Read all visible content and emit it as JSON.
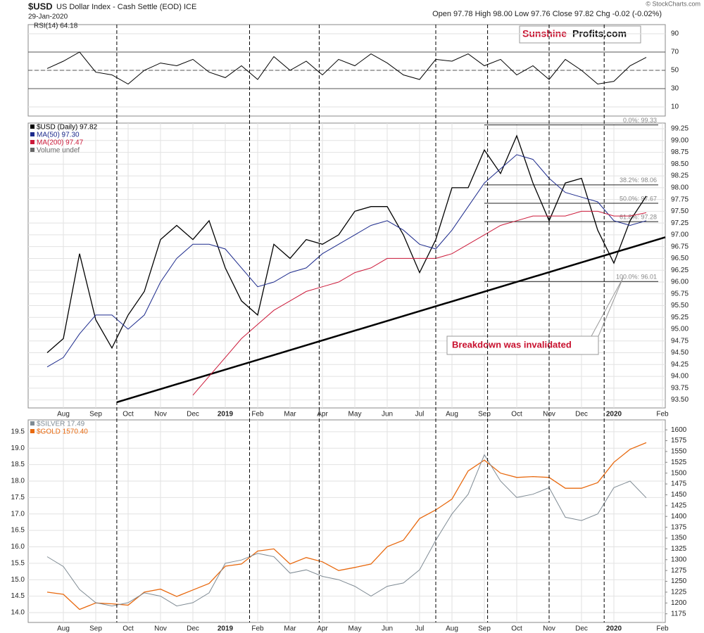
{
  "header": {
    "symbol": "$USD",
    "description": "US Dollar Index - Cash Settle (EOD) ICE",
    "date": "29-Jan-2020",
    "quote": "Open 97.78 High 98.00 Low 97.76 Close 97.82 Chg -0.02 (-0.02%)",
    "copyright": "© StockCharts.com",
    "logo_a": "Sunshine",
    "logo_b": "Profits.com"
  },
  "chart_data": [
    {
      "type": "line",
      "title": "RSI(14) 64.18",
      "color": "#000000",
      "values": [
        52,
        60,
        70,
        48,
        45,
        35,
        50,
        58,
        55,
        62,
        48,
        42,
        55,
        40,
        65,
        50,
        60,
        45,
        62,
        55,
        68,
        58,
        45,
        40,
        62,
        60,
        68,
        55,
        62,
        45,
        55,
        40,
        62,
        50,
        35,
        38,
        55,
        64.18,
        null
      ],
      "ylim": [
        0,
        100
      ],
      "yticks": [
        10,
        30,
        50,
        70,
        90
      ],
      "reference_lines": [
        30,
        50,
        70
      ]
    },
    {
      "type": "line",
      "extra_legend": "Volume undef",
      "categories": [
        null,
        "Aug",
        null,
        "Sep",
        null,
        "Oct",
        null,
        "Nov",
        null,
        "Dec",
        null,
        "2019",
        null,
        "Feb",
        null,
        "Mar",
        null,
        "Apr",
        null,
        "May",
        null,
        "Jun",
        null,
        "Jul",
        null,
        "Aug",
        null,
        "Sep",
        null,
        "Oct",
        null,
        "Nov",
        null,
        "Dec",
        null,
        "2020",
        null,
        null,
        "Feb"
      ],
      "series": [
        {
          "name": "$USD (Daily) 97.82",
          "color": "#000000",
          "values": [
            94.5,
            94.8,
            96.6,
            95.2,
            94.6,
            95.3,
            95.8,
            96.9,
            97.2,
            96.9,
            97.3,
            96.3,
            95.6,
            95.3,
            96.8,
            96.5,
            96.9,
            96.8,
            97.0,
            97.5,
            97.6,
            97.6,
            97.0,
            96.2,
            96.9,
            98.0,
            98.0,
            98.8,
            98.3,
            99.1,
            98.1,
            97.3,
            98.1,
            98.2,
            97.1,
            96.4,
            97.3,
            97.82,
            null
          ]
        },
        {
          "name": "MA(50) 97.30",
          "color": "#1c2a8c",
          "values": [
            94.2,
            94.4,
            94.9,
            95.3,
            95.3,
            95.0,
            95.3,
            96.0,
            96.5,
            96.8,
            96.8,
            96.7,
            96.3,
            95.9,
            96.0,
            96.2,
            96.3,
            96.6,
            96.8,
            97.0,
            97.2,
            97.3,
            97.1,
            96.8,
            96.7,
            97.1,
            97.6,
            98.1,
            98.4,
            98.7,
            98.6,
            98.2,
            97.9,
            97.8,
            97.7,
            97.3,
            97.2,
            97.3,
            null
          ]
        },
        {
          "name": "MA(200) 97.47",
          "color": "#cc1a3a",
          "values": [
            null,
            null,
            null,
            null,
            null,
            null,
            null,
            null,
            null,
            93.6,
            94.0,
            94.4,
            94.8,
            95.1,
            95.4,
            95.6,
            95.8,
            95.9,
            96.0,
            96.2,
            96.3,
            96.5,
            96.5,
            96.5,
            96.5,
            96.6,
            96.8,
            97.0,
            97.2,
            97.3,
            97.4,
            97.4,
            97.4,
            97.5,
            97.5,
            97.4,
            97.4,
            97.47,
            null
          ]
        }
      ],
      "ylim": [
        93.33,
        99.37
      ],
      "yticks": [
        {
          "value": 93.5,
          "label": "93.50"
        },
        {
          "value": 93.75,
          "label": "93.75"
        },
        {
          "value": 94,
          "label": "94.00"
        },
        {
          "value": 94.25,
          "label": "94.25"
        },
        {
          "value": 94.5,
          "label": "94.50"
        },
        {
          "value": 94.75,
          "label": "94.75"
        },
        {
          "value": 95,
          "label": "95.00"
        },
        {
          "value": 95.25,
          "label": "95.25"
        },
        {
          "value": 95.5,
          "label": "95.50"
        },
        {
          "value": 95.75,
          "label": "95.75"
        },
        {
          "value": 96,
          "label": "96.00"
        },
        {
          "value": 96.25,
          "label": "96.25"
        },
        {
          "value": 96.5,
          "label": "96.50"
        },
        {
          "value": 96.75,
          "label": "96.75"
        },
        {
          "value": 97,
          "label": "97.00"
        },
        {
          "value": 97.25,
          "label": "97.25"
        },
        {
          "value": 97.5,
          "label": "97.50"
        },
        {
          "value": 97.75,
          "label": "97.75"
        },
        {
          "value": 98,
          "label": "98.00"
        },
        {
          "value": 98.25,
          "label": "98.25"
        },
        {
          "value": 98.5,
          "label": "98.50"
        },
        {
          "value": 98.75,
          "label": "98.75"
        },
        {
          "value": 99,
          "label": "99.00"
        },
        {
          "value": 99.25,
          "label": "99.25"
        }
      ],
      "fib_levels": [
        {
          "value": 99.33,
          "label": "0.0%: 99.33"
        },
        {
          "value": 98.06,
          "label": "38.2%: 98.06"
        },
        {
          "value": 97.67,
          "label": "50.0%: 97.67"
        },
        {
          "value": 97.28,
          "label": "61.8%: 97.28"
        },
        {
          "value": 96.01,
          "label": "100.0%: 96.01"
        }
      ],
      "trendline": {
        "start": 93.45,
        "end": 96.95
      },
      "annotation": "Breakdown was invalidated"
    },
    {
      "type": "line",
      "categories": [
        null,
        "Aug",
        null,
        "Sep",
        null,
        "Oct",
        null,
        "Nov",
        null,
        "Dec",
        null,
        "2019",
        null,
        "Feb",
        null,
        "Mar",
        null,
        "Apr",
        null,
        "May",
        null,
        "Jun",
        null,
        "Jul",
        null,
        "Aug",
        null,
        "Sep",
        null,
        "Oct",
        null,
        "Nov",
        null,
        "Dec",
        null,
        "2020",
        null,
        null,
        "Feb"
      ],
      "series": [
        {
          "name": "$GOLD 1570.40",
          "color": "#e8690f",
          "axis": "y2",
          "values": [
            1225,
            1220,
            1185,
            1200,
            1198,
            1195,
            1225,
            1232,
            1215,
            1230,
            1245,
            1285,
            1290,
            1320,
            1325,
            1290,
            1305,
            1295,
            1275,
            1282,
            1290,
            1330,
            1345,
            1395,
            1415,
            1440,
            1505,
            1530,
            1500,
            1490,
            1492,
            1490,
            1465,
            1465,
            1478,
            1525,
            1555,
            1570.4,
            null
          ]
        },
        {
          "name": "$SILVER 17.49",
          "color": "#7f8b94",
          "values": [
            15.7,
            15.4,
            14.7,
            14.3,
            14.2,
            14.3,
            14.6,
            14.5,
            14.2,
            14.3,
            14.6,
            15.5,
            15.6,
            15.8,
            15.7,
            15.2,
            15.3,
            15.1,
            15.0,
            14.8,
            14.5,
            14.8,
            14.9,
            15.3,
            16.2,
            17.0,
            17.6,
            18.8,
            18.0,
            17.5,
            17.6,
            17.8,
            16.9,
            16.8,
            17.0,
            17.8,
            18.0,
            17.49,
            null
          ]
        }
      ],
      "ylim": [
        13.7,
        19.86
      ],
      "yticks": [
        {
          "value": 14,
          "label": "14.0"
        },
        14.5,
        {
          "value": 15,
          "label": "15.0"
        },
        15.5,
        {
          "value": 16,
          "label": "16.0"
        },
        16.5,
        {
          "value": 17,
          "label": "17.0"
        },
        17.5,
        {
          "value": 18,
          "label": "18.0"
        },
        18.5,
        {
          "value": 19,
          "label": "19.0"
        },
        19.5
      ],
      "y2lim": [
        1155,
        1623
      ],
      "y2ticks": [
        1175,
        1200,
        1225,
        1250,
        1275,
        1300,
        1325,
        1350,
        1375,
        1400,
        1425,
        1450,
        1475,
        1500,
        1525,
        1550,
        1575,
        1600
      ]
    }
  ]
}
